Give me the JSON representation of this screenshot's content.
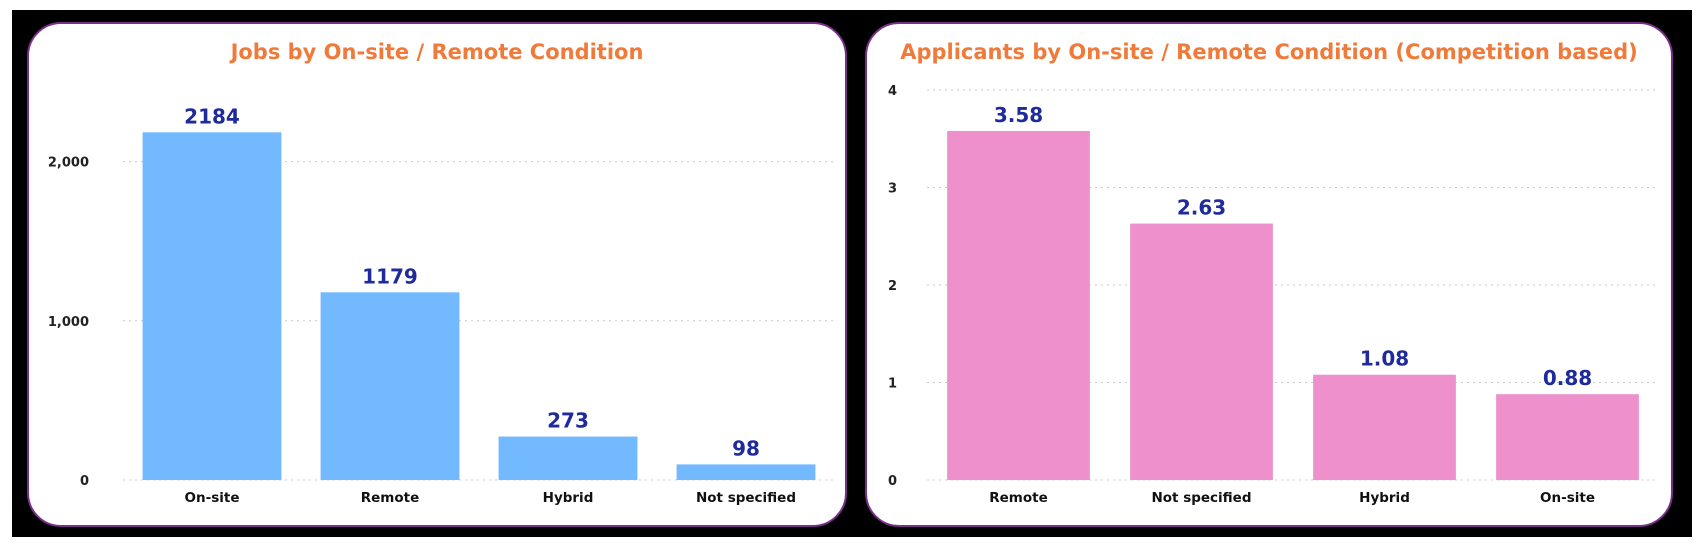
{
  "chart_data": [
    {
      "type": "bar",
      "title": "Jobs by On-site / Remote Condition",
      "categories": [
        "On-site",
        "Remote",
        "Hybrid",
        "Not specified"
      ],
      "values": [
        2184,
        1179,
        273,
        98
      ],
      "ylim": [
        0,
        2500
      ],
      "yticks": [
        0,
        1000,
        2000
      ],
      "ytick_labels": [
        "0",
        "1,000",
        "2,000"
      ],
      "data_labels": [
        "2184",
        "1179",
        "273",
        "98"
      ],
      "bar_color": "#72b9ff",
      "grid": true,
      "xlabel": "",
      "ylabel": ""
    },
    {
      "type": "bar",
      "title": "Applicants by On-site / Remote Condition (Competition based)",
      "categories": [
        "Remote",
        "Not specified",
        "Hybrid",
        "On-site"
      ],
      "values": [
        3.58,
        2.63,
        1.08,
        0.88
      ],
      "ylim": [
        0,
        4
      ],
      "yticks": [
        0,
        1,
        2,
        3,
        4
      ],
      "ytick_labels": [
        "0",
        "1",
        "2",
        "3",
        "4"
      ],
      "data_labels": [
        "3.58",
        "2.63",
        "1.08",
        "0.88"
      ],
      "bar_color": "#ed90cb",
      "grid": true,
      "xlabel": "",
      "ylabel": ""
    }
  ]
}
